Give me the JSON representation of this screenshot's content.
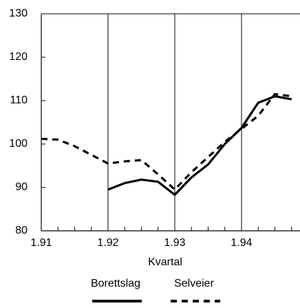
{
  "chart_data": {
    "type": "line",
    "x_label": "Kvartal",
    "categories": [
      "1.91",
      null,
      null,
      null,
      "1.92",
      null,
      null,
      null,
      "1.93",
      null,
      null,
      null,
      "1.94",
      null,
      null,
      null
    ],
    "series": [
      {
        "name": "Borettslag",
        "color": "#000000",
        "line_style": "solid",
        "values": [
          null,
          null,
          null,
          null,
          89.5,
          91,
          91.8,
          91.3,
          88.3,
          92.3,
          95.3,
          100,
          103.7,
          109.5,
          111,
          110.3
        ]
      },
      {
        "name": "Selveier",
        "color": "#000000",
        "line_style": "dashed",
        "values": [
          101.2,
          101,
          99.5,
          97.5,
          95.5,
          96,
          96.3,
          93,
          89.5,
          93.5,
          97,
          100.5,
          103.5,
          106.5,
          111.5,
          111
        ]
      }
    ],
    "ylim": [
      80,
      130
    ],
    "yticks": [
      80,
      90,
      100,
      110,
      120,
      130
    ],
    "grid": true,
    "legend": "bottom"
  }
}
